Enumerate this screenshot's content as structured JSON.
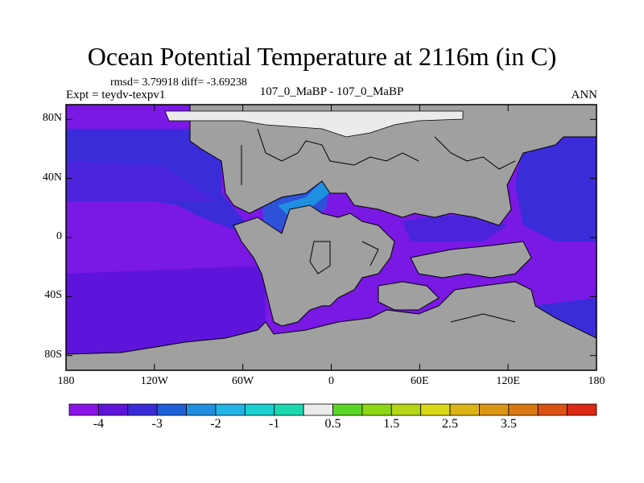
{
  "title": "Ocean Potential Temperature at 2116m (in C)",
  "stats": "rmsd= 3.79918 diff= -3.69238",
  "expt": "Expt = teydv-texpv1",
  "subtitle": "107_0_MaBP - 107_0_MaBP",
  "season": "ANN",
  "map": {
    "lon_range": [
      -180,
      180
    ],
    "lat_range": [
      -90,
      90
    ],
    "y_ticks": [
      "80N",
      "40N",
      "0",
      "40S",
      "80S"
    ],
    "x_ticks": [
      "180",
      "120W",
      "60W",
      "0",
      "60E",
      "120E",
      "180"
    ],
    "land_color": "#a0a0a0",
    "ice_color": "#ebebeb",
    "coastline_color": "#000000"
  },
  "colorbar": {
    "colors": [
      "#8a14e6",
      "#5f14dc",
      "#3a2cd8",
      "#1f5fd8",
      "#1f8fe0",
      "#23b4e6",
      "#1ad0d2",
      "#1ad8b0",
      "#ebebeb",
      "#5ad628",
      "#8cd614",
      "#b4d614",
      "#d8d814",
      "#dcb414",
      "#dc9614",
      "#dc7814",
      "#dc5014",
      "#dc2814"
    ],
    "labels": [
      "-4",
      "-3",
      "-2",
      "-1",
      "0.5",
      "1.5",
      "2.5",
      "3.5"
    ]
  },
  "chart_data": {
    "type": "heatmap",
    "title": "Ocean Potential Temperature at 2116m (in C)",
    "field": "difference of ocean potential temperature",
    "units": "C",
    "rmsd": 3.79918,
    "mean_diff": -3.69238,
    "experiment": "teydv-texpv1",
    "period": "107_0_MaBP - 107_0_MaBP",
    "season": "ANN",
    "xlim": [
      -180,
      180
    ],
    "ylim": [
      -90,
      90
    ],
    "colorbar_levels": [
      -4.5,
      -4,
      -3.5,
      -3,
      -2.5,
      -2,
      -1.5,
      -1,
      -0.5,
      0.5,
      1,
      1.5,
      2,
      2.5,
      3,
      3.5,
      4,
      4.5
    ],
    "colorbar_labels": [
      "-4",
      "-3",
      "-2",
      "-1",
      "0.5",
      "1.5",
      "2.5",
      "3.5"
    ],
    "dominant_values": "mostly -4 to -4.5 C over open oceans, -3 to -2 C near northern coasts"
  }
}
